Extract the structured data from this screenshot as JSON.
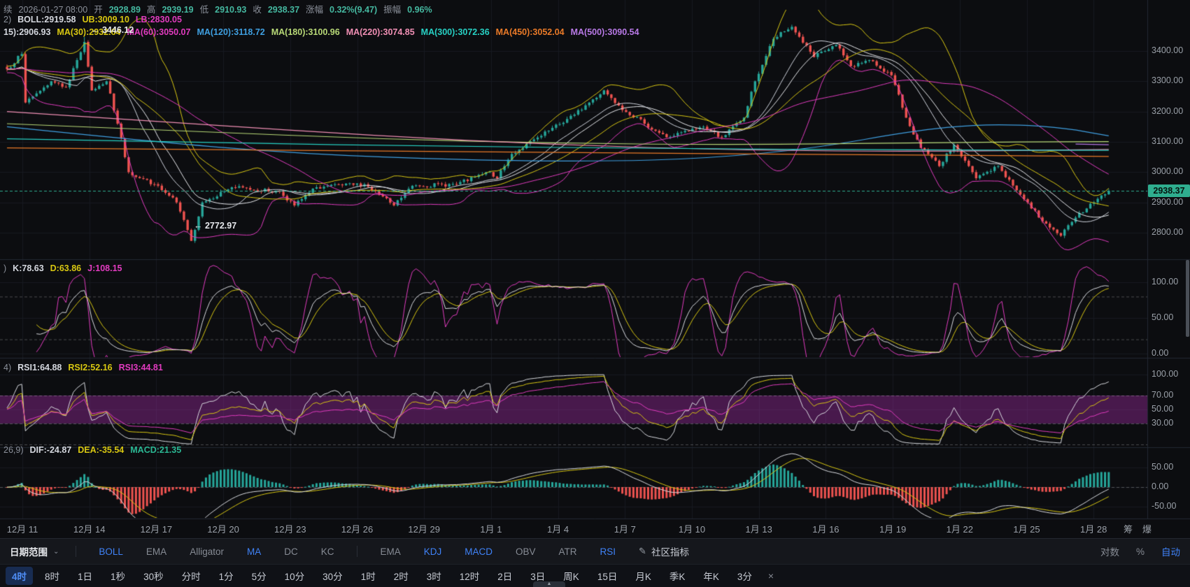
{
  "header": {
    "line1": [
      {
        "t": "续",
        "c": "#8b909a"
      },
      {
        "t": "2026-01-27 08:00",
        "c": "#8b909a"
      },
      {
        "t": "开",
        "c": "#8b909a"
      },
      {
        "t": "2928.89",
        "c": "#45b8a0"
      },
      {
        "t": "高",
        "c": "#8b909a"
      },
      {
        "t": "2939.19",
        "c": "#45b8a0"
      },
      {
        "t": "低",
        "c": "#8b909a"
      },
      {
        "t": "2910.93",
        "c": "#45b8a0"
      },
      {
        "t": "收",
        "c": "#8b909a"
      },
      {
        "t": "2938.37",
        "c": "#45b8a0"
      },
      {
        "t": "涨幅",
        "c": "#8b909a"
      },
      {
        "t": "0.32%(9.47)",
        "c": "#45b8a0"
      },
      {
        "t": "振幅",
        "c": "#8b909a"
      },
      {
        "t": "0.96%",
        "c": "#45b8a0"
      }
    ],
    "line2": [
      {
        "t": "2)",
        "c": "#8b909a"
      },
      {
        "t": "BOLL:2919.58",
        "c": "#d5d8df"
      },
      {
        "t": "UB:3009.10",
        "c": "#d8c711"
      },
      {
        "t": "LB:2830.05",
        "c": "#e13bbf"
      }
    ],
    "line3": [
      {
        "t": "15):2906.93",
        "c": "#d5d8df"
      },
      {
        "t": "MA(30):2932.64",
        "c": "#d8c711"
      },
      {
        "t": "MA(60):3050.07",
        "c": "#e13bbf"
      },
      {
        "t": "MA(120):3118.72",
        "c": "#3f9fe0"
      },
      {
        "t": "MA(180):3100.96",
        "c": "#b8d977"
      },
      {
        "t": "MA(220):3074.85",
        "c": "#f08fb4"
      },
      {
        "t": "MA(300):3072.36",
        "c": "#27d1c4"
      },
      {
        "t": "MA(450):3052.04",
        "c": "#ea7a28"
      },
      {
        "t": "MA(500):3090.54",
        "c": "#b879e6"
      }
    ],
    "kdj_row": [
      {
        "t": ")",
        "c": "#8b909a"
      },
      {
        "t": "K:78.63",
        "c": "#d5d8df"
      },
      {
        "t": "D:63.86",
        "c": "#d8c711"
      },
      {
        "t": "J:108.15",
        "c": "#e13bbf"
      }
    ],
    "rsi_row": [
      {
        "t": "4)",
        "c": "#8b909a"
      },
      {
        "t": "RSI1:64.88",
        "c": "#d5d8df"
      },
      {
        "t": "RSI2:52.16",
        "c": "#d8c711"
      },
      {
        "t": "RSI3:44.81",
        "c": "#e13bbf"
      }
    ],
    "macd_row": [
      {
        "t": "26,9)",
        "c": "#8b909a"
      },
      {
        "t": "DIF:-24.87",
        "c": "#d5d8df"
      },
      {
        "t": "DEA:-35.54",
        "c": "#d8c711"
      },
      {
        "t": "MACD:21.35",
        "c": "#2bb894"
      }
    ]
  },
  "axis": {
    "side_labels": [
      "筹",
      "爆"
    ]
  },
  "toolbar": {
    "date_range_label": "日期范围",
    "caret": "⌄",
    "group1": [
      {
        "label": "BOLL",
        "active": true
      },
      {
        "label": "EMA",
        "active": false
      },
      {
        "label": "Alligator",
        "active": false
      },
      {
        "label": "MA",
        "active": true
      },
      {
        "label": "DC",
        "active": false
      },
      {
        "label": "KC",
        "active": false
      }
    ],
    "group2": [
      {
        "label": "EMA",
        "active": false
      },
      {
        "label": "KDJ",
        "active": true
      },
      {
        "label": "MACD",
        "active": true
      },
      {
        "label": "OBV",
        "active": false
      },
      {
        "label": "ATR",
        "active": false
      },
      {
        "label": "RSI",
        "active": true
      }
    ],
    "community_label": "社区指标",
    "edit_icon": "✎",
    "right": [
      {
        "label": "对数",
        "active": false
      },
      {
        "label": "%",
        "active": false
      },
      {
        "label": "自动",
        "active": true
      }
    ]
  },
  "timeframes": {
    "items": [
      "4时",
      "8时",
      "1日",
      "1秒",
      "30秒",
      "分时",
      "1分",
      "5分",
      "10分",
      "30分",
      "1时",
      "2时",
      "3时",
      "12时",
      "2日",
      "3日",
      "周K",
      "15日",
      "月K",
      "季K",
      "年K",
      "3分"
    ],
    "active": "4时",
    "close_label": "×",
    "collapse_icon": "▲"
  },
  "chart_data": {
    "type": "candlestick",
    "ohlc": {
      "datetime": "2026-01-27 08:00",
      "open": 2928.89,
      "high": 2939.19,
      "low": 2910.93,
      "close": 2938.37,
      "change": "0.32%(9.47)",
      "amplitude": "0.96%"
    },
    "price_axis_ticks": [
      3400,
      3300,
      3200,
      3100,
      3000,
      2900,
      2800
    ],
    "last_price": 2938.37,
    "last_price_label": "2938.37",
    "dates": [
      "12月 11",
      "12月 14",
      "12月 17",
      "12月 20",
      "12月 23",
      "12月 26",
      "12月 29",
      "1月 1",
      "1月 4",
      "1月 7",
      "1月 10",
      "1月 13",
      "1月 16",
      "1月 19",
      "1月 22",
      "1月 25",
      "1月 28"
    ],
    "candle_count": 300,
    "close_anchors": [
      [
        0,
        3340
      ],
      [
        4,
        3390
      ],
      [
        5,
        3230
      ],
      [
        8,
        3260
      ],
      [
        12,
        3300
      ],
      [
        16,
        3280
      ],
      [
        21,
        3430
      ],
      [
        23,
        3270
      ],
      [
        27,
        3300
      ],
      [
        30,
        3160
      ],
      [
        33,
        3000
      ],
      [
        40,
        2960
      ],
      [
        46,
        2900
      ],
      [
        50,
        2773
      ],
      [
        53,
        2900
      ],
      [
        61,
        2950
      ],
      [
        74,
        2935
      ],
      [
        78,
        2890
      ],
      [
        84,
        2950
      ],
      [
        97,
        2960
      ],
      [
        105,
        2890
      ],
      [
        110,
        2955
      ],
      [
        122,
        2960
      ],
      [
        131,
        3000
      ],
      [
        133,
        2980
      ],
      [
        137,
        3060
      ],
      [
        145,
        3120
      ],
      [
        154,
        3190
      ],
      [
        162,
        3270
      ],
      [
        166,
        3220
      ],
      [
        173,
        3160
      ],
      [
        179,
        3115
      ],
      [
        189,
        3150
      ],
      [
        194,
        3115
      ],
      [
        200,
        3180
      ],
      [
        203,
        3300
      ],
      [
        208,
        3440
      ],
      [
        213,
        3480
      ],
      [
        219,
        3380
      ],
      [
        225,
        3420
      ],
      [
        229,
        3350
      ],
      [
        234,
        3370
      ],
      [
        240,
        3320
      ],
      [
        244,
        3180
      ],
      [
        248,
        3080
      ],
      [
        253,
        3020
      ],
      [
        257,
        3090
      ],
      [
        263,
        2980
      ],
      [
        269,
        3020
      ],
      [
        274,
        2940
      ],
      [
        278,
        2880
      ],
      [
        282,
        2830
      ],
      [
        286,
        2790
      ],
      [
        290,
        2850
      ],
      [
        295,
        2900
      ],
      [
        299,
        2938.37
      ]
    ],
    "key_points": {
      "spike_high": {
        "index": 21,
        "price": 3446.12
      },
      "period_high": {
        "index": 213,
        "price": 3487
      },
      "crash_low": {
        "index": 50,
        "price": 2772.97
      },
      "end_low": {
        "index": 286,
        "price": 2786
      }
    },
    "annotations": {
      "high_label": "← 3446.12",
      "low_label": "← 2772.97"
    },
    "boll": {
      "period": 20,
      "mult": 2,
      "mid": 2919.58,
      "ub": 3009.1,
      "lb": 2830.05,
      "colors": {
        "mid": "#e8e9ec",
        "ub": "#d8c711",
        "lb": "#e13bbf"
      }
    },
    "sma": [
      {
        "period": 15,
        "window": 15,
        "value": 2906.93,
        "color": "#cfd3dc"
      },
      {
        "period": 30,
        "window": 31,
        "value": 2932.64,
        "color": "#d8c711"
      },
      {
        "period": 60,
        "window": 62,
        "value": 3050.07,
        "color": "#e13bbf"
      }
    ],
    "long_ma": [
      {
        "period": 120,
        "value": 3118.72,
        "color": "#3f9fe0",
        "anchors": [
          [
            0,
            3150
          ],
          [
            40,
            3100
          ],
          [
            80,
            3060
          ],
          [
            124,
            3040
          ],
          [
            160,
            3035
          ],
          [
            190,
            3045
          ],
          [
            220,
            3080
          ],
          [
            245,
            3135
          ],
          [
            265,
            3160
          ],
          [
            285,
            3150
          ],
          [
            299,
            3120
          ]
        ]
      },
      {
        "period": 180,
        "value": 3100.96,
        "color": "#b8d977",
        "anchors": [
          [
            0,
            3160
          ],
          [
            50,
            3135
          ],
          [
            100,
            3110
          ],
          [
            150,
            3095
          ],
          [
            200,
            3090
          ],
          [
            250,
            3098
          ],
          [
            299,
            3101
          ]
        ]
      },
      {
        "period": 220,
        "value": 3074.85,
        "color": "#f08fb4",
        "anchors": [
          [
            0,
            3200
          ],
          [
            50,
            3160
          ],
          [
            100,
            3120
          ],
          [
            150,
            3090
          ],
          [
            200,
            3072
          ],
          [
            250,
            3068
          ],
          [
            299,
            3075
          ]
        ]
      },
      {
        "period": 300,
        "value": 3072.36,
        "color": "#27d1c4",
        "anchors": [
          [
            0,
            3110
          ],
          [
            60,
            3096
          ],
          [
            120,
            3085
          ],
          [
            180,
            3078
          ],
          [
            240,
            3073
          ],
          [
            299,
            3072
          ]
        ]
      },
      {
        "period": 450,
        "value": 3052.04,
        "color": "#ea7a28",
        "anchors": [
          [
            0,
            3080
          ],
          [
            60,
            3074
          ],
          [
            120,
            3068
          ],
          [
            180,
            3062
          ],
          [
            240,
            3057
          ],
          [
            299,
            3052
          ]
        ]
      },
      {
        "period": 500,
        "value": 3090.54,
        "color": "#b879e6",
        "anchors": [
          [
            290,
            3093
          ],
          [
            299,
            3090.5
          ]
        ]
      }
    ],
    "kdj": {
      "k": 78.63,
      "d": 63.86,
      "j": 108.15,
      "dashed_levels": [
        80,
        20
      ],
      "ticks": [
        100,
        50,
        0
      ],
      "colors": [
        "#d9dbe0",
        "#d8c711",
        "#e13bbf"
      ]
    },
    "rsi": {
      "rsi1": 64.88,
      "rsi2": 52.16,
      "rsi3": 44.81,
      "periods": [
        6,
        12,
        24
      ],
      "band": [
        30,
        70
      ],
      "ticks": [
        100,
        70,
        50,
        30
      ],
      "band_color": "rgba(158,44,160,0.42)",
      "colors": [
        "#d9dbe0",
        "#d8c711",
        "#e13bbf"
      ]
    },
    "macd": {
      "dif": -24.87,
      "dea": -35.54,
      "macd": 21.35,
      "params": [
        12,
        26,
        9
      ],
      "ticks": [
        50,
        0,
        -50
      ],
      "colors": {
        "dif": "#d9dbe0",
        "dea": "#d8c711",
        "up": "#26a69a",
        "down": "#ef5350"
      }
    },
    "candle_colors": {
      "up": "#26a69a",
      "down": "#ef5350"
    },
    "current_price_color": "#2fae8f"
  }
}
